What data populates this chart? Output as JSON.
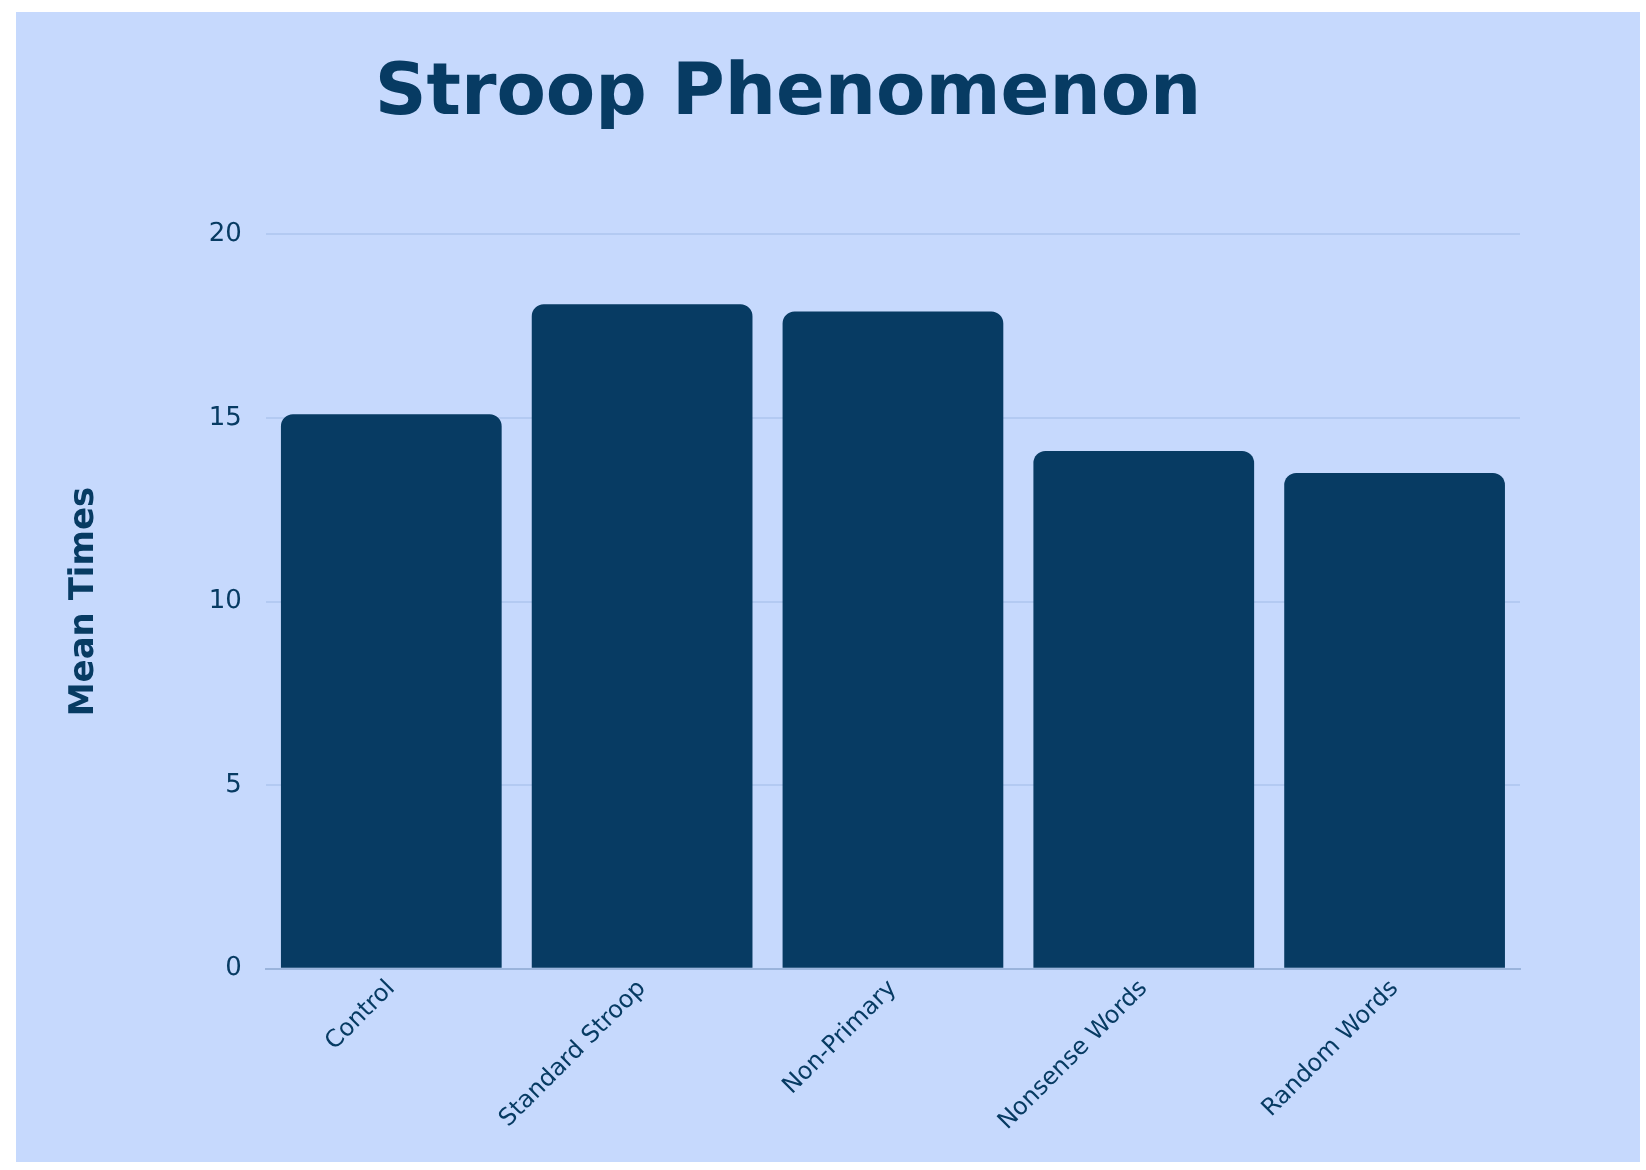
{
  "chart_data": {
    "type": "bar",
    "title": "Stroop Phenomenon",
    "ylabel": "Mean Times",
    "categories": [
      "Control",
      "Standard Stroop",
      "Non-Primary",
      "Nonsense Words",
      "Random Words"
    ],
    "values": [
      15.1,
      18.1,
      17.9,
      14.1,
      13.5
    ],
    "color": "#073b63",
    "ylim": [
      0,
      20
    ],
    "yticks": [
      0,
      5,
      10,
      15,
      20
    ],
    "grid": "y",
    "legend": false
  }
}
